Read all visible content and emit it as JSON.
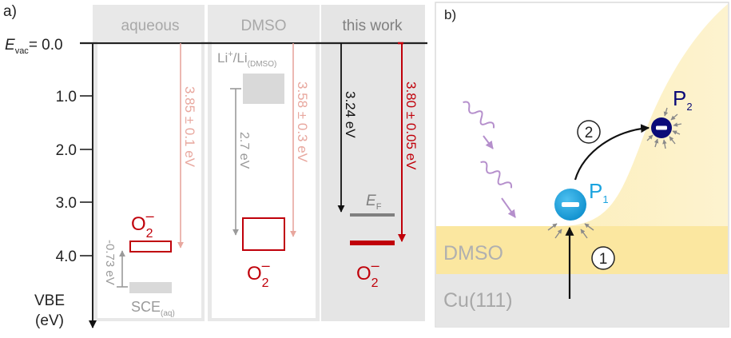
{
  "panel_a": {
    "label": "a)",
    "evac_main": "E",
    "evac_sub": "vac",
    "evac_value": "= 0.0",
    "axis_ticks": [
      {
        "label": "1.0"
      },
      {
        "label": "2.0"
      },
      {
        "label": "3.0"
      },
      {
        "label": "4.0"
      }
    ],
    "axis_label_line1": "VBE",
    "axis_label_line2": "(eV)",
    "columns": [
      {
        "title": "aqueous"
      },
      {
        "title": "DMSO"
      },
      {
        "title": "this work"
      }
    ],
    "aqueous": {
      "energy_label": "3.85 ± 0.1 eV",
      "diff_label": "-0.73 eV",
      "o2_main": "O",
      "o2_sub": "2",
      "o2_sup": "–",
      "ref_main": "SCE",
      "ref_sub": "(aq)"
    },
    "dmso": {
      "ref_main": "Li",
      "ref_sup": "+",
      "ref_main2": "/Li",
      "ref_sub": "(DMSO)",
      "diff_label": "2.7 eV",
      "energy_label": "3.58 ± 0.3 eV",
      "o2_main": "O",
      "o2_sub": "2",
      "o2_sup": "–"
    },
    "this_work": {
      "energy_label_black": "3.24 eV",
      "energy_label_red": "3.80 ± 0.05 eV",
      "ef_main": "E",
      "ef_sub": "F",
      "o2_main": "O",
      "o2_sub": "2",
      "o2_sup": "–"
    }
  },
  "panel_b": {
    "label": "b)",
    "layer_top": "DMSO",
    "layer_bottom": "Cu(111)",
    "p1_main": "P",
    "p1_sub": "1",
    "p2_main": "P",
    "p2_sub": "2",
    "step1": "1",
    "step2": "2"
  },
  "colors": {
    "red": "#c0000a",
    "light_red": "#e8a79e",
    "gray": "#9a9a9a",
    "light_gray": "#d9d9d9",
    "column_bg": "#e5e5e5",
    "dmso_yellow": "#fbe9a3",
    "blue": "#1aa3df",
    "navy": "#0b0b78",
    "purple": "#b58fcc"
  }
}
